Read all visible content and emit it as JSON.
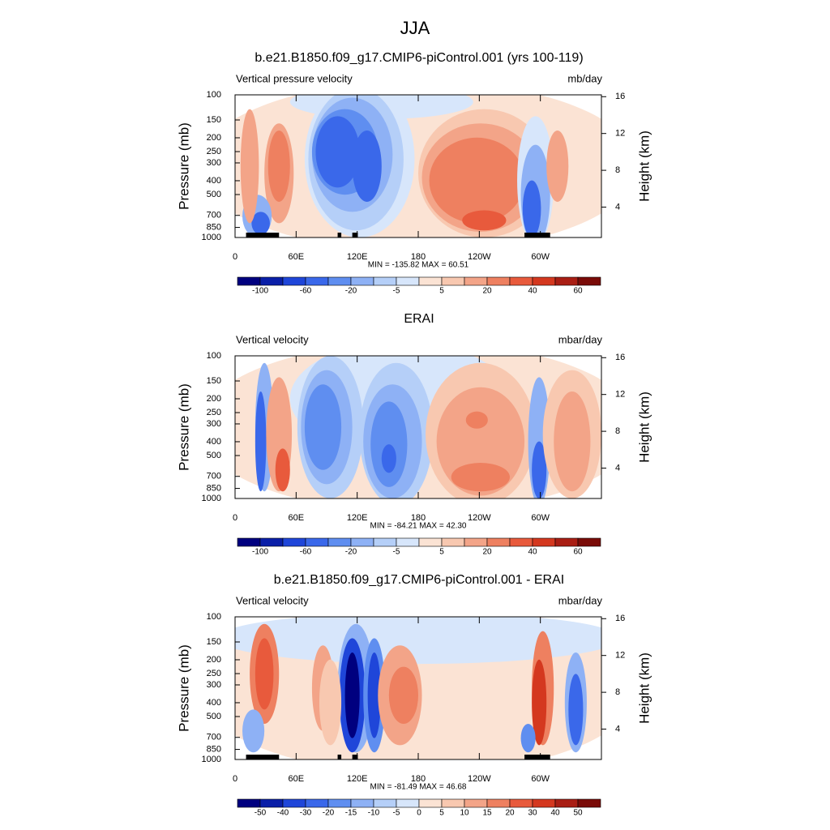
{
  "title": "JJA",
  "chart_data": [
    {
      "type": "contour",
      "title": "b.e21.B1850.f09_g17.CMIP6-piControl.001 (yrs 100-119)",
      "left_label": "Vertical pressure velocity",
      "right_label": "mb/day",
      "y_label": "Pressure (mb)",
      "y2_label": "Height (km)",
      "min_max": "MIN = -135.82  MAX =  60.51",
      "xlim": [
        0,
        360
      ],
      "xticks": [
        0,
        {
          "value": 60,
          "label": "60E"
        },
        {
          "value": 120,
          "label": "120E"
        },
        180,
        {
          "value": 240,
          "label": "120W"
        },
        {
          "value": 300,
          "label": "60W"
        }
      ],
      "ylim": [
        1000,
        100
      ],
      "yscale": "log",
      "yticks": [
        100,
        150,
        200,
        250,
        300,
        400,
        500,
        700,
        850,
        1000
      ],
      "y2lim": [
        0.7,
        16.2
      ],
      "y2ticks": [
        4,
        8,
        12,
        16
      ],
      "colorbar": {
        "colors": [
          "#00007f",
          "#0a1fa8",
          "#1f46d9",
          "#3a68ea",
          "#5f8ef0",
          "#8eb1f5",
          "#b5cff8",
          "#d7e6fb",
          "#fbe3d4",
          "#f8c8b0",
          "#f3a488",
          "#ee8060",
          "#e85a3c",
          "#d4381f",
          "#a91e14",
          "#7a0b08"
        ],
        "ticks": [
          -100,
          -60,
          -20,
          -5,
          5,
          20,
          40,
          60
        ]
      }
    },
    {
      "type": "contour",
      "title": "ERAI",
      "left_label": "Vertical velocity",
      "right_label": "mbar/day",
      "y_label": "Pressure (mb)",
      "y2_label": "Height (km)",
      "min_max": "MIN = -84.21  MAX =  42.30",
      "xlim": [
        0,
        360
      ],
      "xticks": [
        0,
        {
          "value": 60,
          "label": "60E"
        },
        {
          "value": 120,
          "label": "120E"
        },
        180,
        {
          "value": 240,
          "label": "120W"
        },
        {
          "value": 300,
          "label": "60W"
        }
      ],
      "ylim": [
        1000,
        100
      ],
      "yscale": "log",
      "yticks": [
        100,
        150,
        200,
        250,
        300,
        400,
        500,
        700,
        850,
        1000
      ],
      "y2lim": [
        0.7,
        16.2
      ],
      "y2ticks": [
        4,
        8,
        12,
        16
      ],
      "colorbar": {
        "colors": [
          "#00007f",
          "#0a1fa8",
          "#1f46d9",
          "#3a68ea",
          "#5f8ef0",
          "#8eb1f5",
          "#b5cff8",
          "#d7e6fb",
          "#fbe3d4",
          "#f8c8b0",
          "#f3a488",
          "#ee8060",
          "#e85a3c",
          "#d4381f",
          "#a91e14",
          "#7a0b08"
        ],
        "ticks": [
          -100,
          -60,
          -20,
          -5,
          5,
          20,
          40,
          60
        ]
      }
    },
    {
      "type": "contour",
      "title": "b.e21.B1850.f09_g17.CMIP6-piControl.001 - ERAI",
      "left_label": "Vertical velocity",
      "right_label": "mbar/day",
      "y_label": "Pressure (mb)",
      "y2_label": "Height (km)",
      "min_max": "MIN = -81.49  MAX =  46.68",
      "xlim": [
        0,
        360
      ],
      "xticks": [
        0,
        {
          "value": 60,
          "label": "60E"
        },
        {
          "value": 120,
          "label": "120E"
        },
        180,
        {
          "value": 240,
          "label": "120W"
        },
        {
          "value": 300,
          "label": "60W"
        }
      ],
      "ylim": [
        1000,
        100
      ],
      "yscale": "log",
      "yticks": [
        100,
        150,
        200,
        250,
        300,
        400,
        500,
        700,
        850,
        1000
      ],
      "y2lim": [
        0.7,
        16.2
      ],
      "y2ticks": [
        4,
        8,
        12,
        16
      ],
      "colorbar": {
        "colors": [
          "#00007f",
          "#0a1fa8",
          "#1f46d9",
          "#3a68ea",
          "#5f8ef0",
          "#8eb1f5",
          "#b5cff8",
          "#d7e6fb",
          "#fbe3d4",
          "#f8c8b0",
          "#f3a488",
          "#ee8060",
          "#e85a3c",
          "#d4381f",
          "#a91e14",
          "#7a0b08"
        ],
        "ticks": [
          -50,
          -40,
          -30,
          -20,
          -15,
          -10,
          -5,
          0,
          5,
          10,
          15,
          20,
          30,
          40,
          50
        ]
      }
    }
  ]
}
